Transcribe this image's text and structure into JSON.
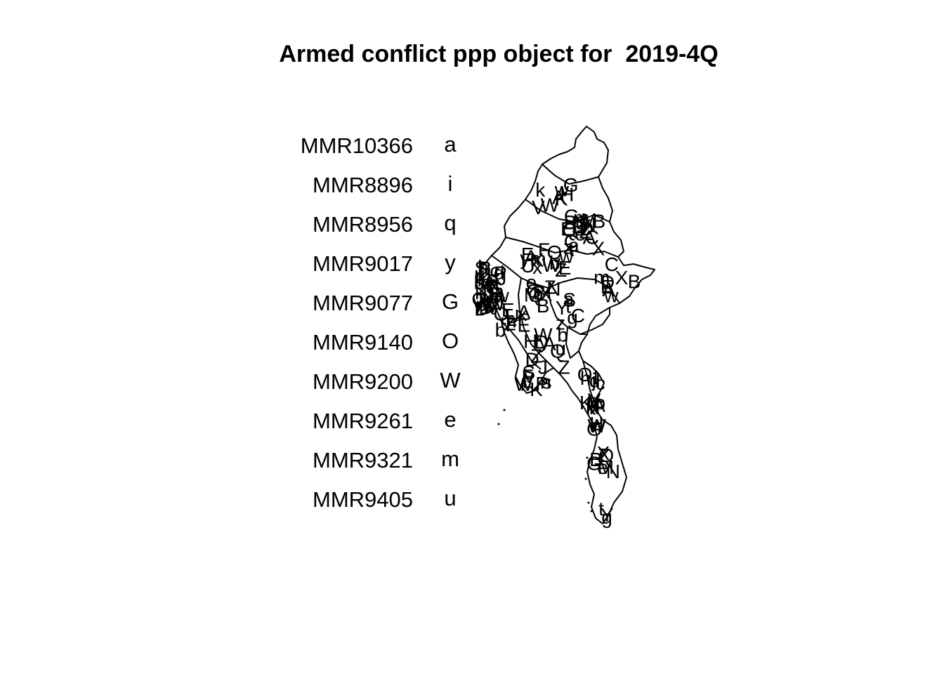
{
  "title": "Armed conflict ppp object for  2019-4Q",
  "legend": [
    {
      "id": "MMR10366",
      "mark": "a"
    },
    {
      "id": "MMR8896",
      "mark": "i"
    },
    {
      "id": "MMR8956",
      "mark": "q"
    },
    {
      "id": "MMR9017",
      "mark": "y"
    },
    {
      "id": "MMR9077",
      "mark": "G"
    },
    {
      "id": "MMR9140",
      "mark": "O"
    },
    {
      "id": "MMR9200",
      "mark": "W"
    },
    {
      "id": "MMR9261",
      "mark": "e"
    },
    {
      "id": "MMR9321",
      "mark": "m"
    },
    {
      "id": "MMR9405",
      "mark": "u"
    }
  ],
  "map": {
    "region": "Myanmar",
    "outline_color": "#000000",
    "point_color": "#000000",
    "point_marks": [
      "K",
      "k",
      "A",
      "V",
      "H",
      "W",
      "G",
      "w",
      "M",
      "Z",
      "G",
      "X",
      "Q",
      "B",
      "e",
      "N",
      "t",
      "g",
      "Y",
      "C",
      "B",
      "z",
      "a",
      "S",
      "D",
      "C",
      "B",
      "m",
      "E",
      "A",
      "w",
      "X",
      "x",
      "m",
      "E",
      "Q",
      "U",
      "Z",
      "E",
      "b",
      "F",
      "A",
      "y",
      "W",
      "D",
      "b",
      "A",
      "D",
      "Q",
      "Z",
      "Z",
      "J",
      "u",
      "H",
      "W",
      "K",
      "F",
      "S",
      "n",
      "P",
      "L",
      "r",
      "s",
      "v",
      "d",
      "h",
      "c",
      "j",
      "l",
      "O",
      "I",
      "T",
      "R",
      "o",
      "p",
      "f"
    ]
  }
}
